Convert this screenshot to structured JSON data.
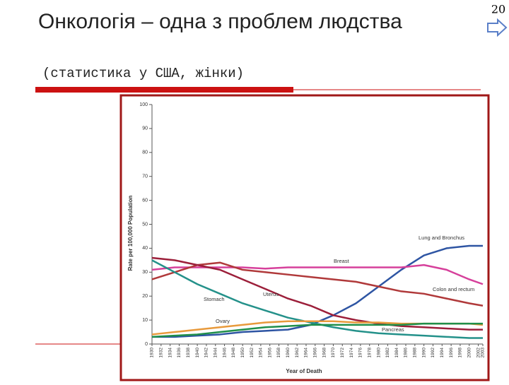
{
  "slide": {
    "title": "Онкологія – одна з проблем людства",
    "subtitle": "(статистика у США, жінки)",
    "number": "20"
  },
  "chart_data": {
    "type": "line",
    "x_label": "Year of Death",
    "y_label": "Rate per 100,000 Population",
    "x": [
      1930,
      1935,
      1940,
      1945,
      1950,
      1955,
      1960,
      1965,
      1970,
      1975,
      1980,
      1985,
      1990,
      1995,
      2000,
      2003
    ],
    "series": [
      {
        "name": "Lung and Bronchus",
        "color": "#2e55a3",
        "values": [
          3,
          3,
          3.5,
          4,
          5,
          5.5,
          6,
          8,
          12,
          17,
          24,
          31,
          37,
          40,
          41,
          41
        ]
      },
      {
        "name": "Breast",
        "color": "#d6409b",
        "values": [
          31,
          32,
          32,
          32,
          32,
          31.5,
          32,
          32,
          32,
          32,
          32,
          32,
          33,
          31,
          27,
          25
        ]
      },
      {
        "name": "Colon and rectum",
        "color": "#b0393a",
        "values": [
          27,
          30,
          33,
          34,
          31,
          30,
          29,
          28,
          27,
          26,
          24,
          22,
          21,
          19,
          17,
          16
        ]
      },
      {
        "name": "Uterus",
        "color": "#9c1f3a",
        "values": [
          36,
          35,
          33,
          31,
          27,
          23,
          19,
          16,
          12,
          10,
          8.5,
          7.5,
          7,
          6.5,
          6,
          6
        ]
      },
      {
        "name": "Stomach",
        "color": "#24918a",
        "values": [
          35,
          30,
          25,
          21,
          17,
          14,
          11,
          9,
          7,
          5.5,
          4.5,
          4,
          3.5,
          3,
          2.5,
          2.5
        ]
      },
      {
        "name": "Ovary",
        "color": "#e89a3c",
        "values": [
          4,
          5,
          6,
          7,
          8,
          9,
          9.5,
          9.5,
          9.5,
          9,
          9,
          8.5,
          8.5,
          8.5,
          8.5,
          8
        ]
      },
      {
        "name": "Pancreas",
        "color": "#1f8f4a",
        "values": [
          3,
          3.5,
          4,
          5,
          6,
          7,
          7.5,
          8,
          8,
          8,
          8,
          8,
          8.5,
          8.5,
          8.5,
          8.5
        ]
      }
    ],
    "xlim": [
      1930,
      2003
    ],
    "xticks": [
      1930,
      1932,
      1934,
      1936,
      1938,
      1940,
      1942,
      1944,
      1946,
      1948,
      1950,
      1952,
      1954,
      1956,
      1958,
      1960,
      1962,
      1964,
      1966,
      1968,
      1970,
      1972,
      1974,
      1976,
      1978,
      1980,
      1982,
      1984,
      1986,
      1988,
      1990,
      1992,
      1994,
      1996,
      1998,
      2000,
      2002,
      2003
    ],
    "ylim": [
      0,
      100
    ],
    "yticks": [
      0,
      10,
      20,
      30,
      40,
      50,
      60,
      70,
      80,
      90,
      100
    ]
  }
}
